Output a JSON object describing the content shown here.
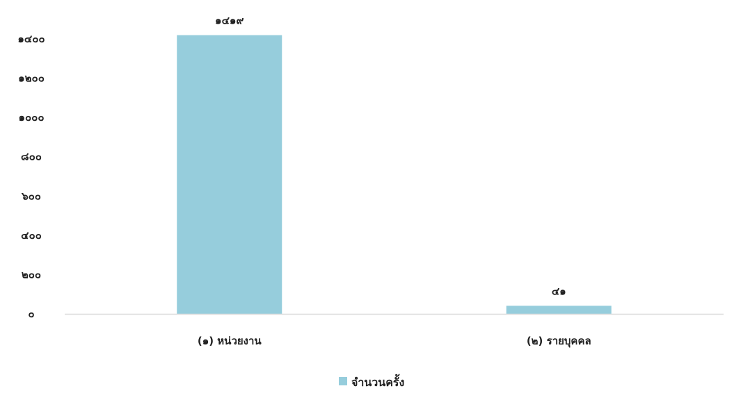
{
  "chart_data": {
    "type": "bar",
    "categories": [
      "(๑) หน่วยงาน",
      "(๒) รายบุคคล"
    ],
    "series": [
      {
        "name": "จำนวนครั้ง",
        "values": [
          1419,
          41
        ],
        "labels": [
          "๑๔๑๙",
          "๔๑"
        ]
      }
    ],
    "y_ticks": [
      {
        "value": 0,
        "label": "๐"
      },
      {
        "value": 200,
        "label": "๒๐๐"
      },
      {
        "value": 400,
        "label": "๔๐๐"
      },
      {
        "value": 600,
        "label": "๖๐๐"
      },
      {
        "value": 800,
        "label": "๘๐๐"
      },
      {
        "value": 1000,
        "label": "๑๐๐๐"
      },
      {
        "value": 1200,
        "label": "๑๒๐๐"
      },
      {
        "value": 1400,
        "label": "๑๔๐๐"
      }
    ],
    "ylim": [
      0,
      1400
    ],
    "grid": false,
    "legend_position": "bottom",
    "colors": {
      "bar": "#96cddc",
      "axis": "#d9d9d9",
      "text": "#222222"
    }
  }
}
